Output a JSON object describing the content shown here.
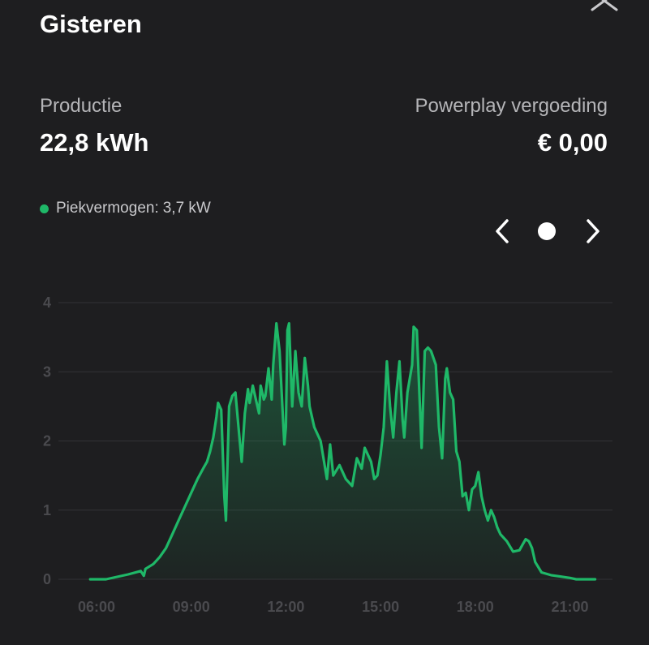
{
  "header": {
    "title": "Gisteren"
  },
  "stats": {
    "production_label": "Productie",
    "production_value": "22,8 kWh",
    "powerplay_label": "Powerplay vergoeding",
    "powerplay_value": "€ 0,00"
  },
  "legend": {
    "label": "Piekvermogen:",
    "value": "3,7 kW",
    "color": "#1fb868"
  },
  "colors": {
    "background": "#1e1e20",
    "line": "#1fb868",
    "grid": "#333336",
    "tick": "#4a4a4e"
  },
  "chart_data": {
    "type": "area",
    "x_unit": "hour",
    "y_unit": "kW",
    "ylim": [
      0,
      4
    ],
    "y_ticks": [
      0,
      1,
      2,
      3,
      4
    ],
    "x_ticks": [
      {
        "value": 6,
        "label": "06:00"
      },
      {
        "value": 9,
        "label": "09:00"
      },
      {
        "value": 12,
        "label": "12:00"
      },
      {
        "value": 15,
        "label": "15:00"
      },
      {
        "value": 18,
        "label": "18:00"
      },
      {
        "value": 21,
        "label": "21:00"
      }
    ],
    "grid": true,
    "series": [
      {
        "points": [
          [
            5.8,
            0
          ],
          [
            6.3,
            0
          ],
          [
            7.0,
            0.07
          ],
          [
            7.4,
            0.12
          ],
          [
            7.5,
            0.05
          ],
          [
            7.55,
            0.15
          ],
          [
            7.8,
            0.22
          ],
          [
            8.0,
            0.32
          ],
          [
            8.2,
            0.45
          ],
          [
            8.4,
            0.65
          ],
          [
            8.6,
            0.85
          ],
          [
            8.8,
            1.05
          ],
          [
            9.0,
            1.25
          ],
          [
            9.2,
            1.45
          ],
          [
            9.4,
            1.62
          ],
          [
            9.5,
            1.7
          ],
          [
            9.6,
            1.85
          ],
          [
            9.7,
            2.05
          ],
          [
            9.8,
            2.35
          ],
          [
            9.85,
            2.55
          ],
          [
            9.95,
            2.45
          ],
          [
            10.05,
            1.2
          ],
          [
            10.1,
            0.85
          ],
          [
            10.2,
            2.5
          ],
          [
            10.3,
            2.65
          ],
          [
            10.4,
            2.7
          ],
          [
            10.5,
            2.2
          ],
          [
            10.6,
            1.7
          ],
          [
            10.7,
            2.4
          ],
          [
            10.8,
            2.75
          ],
          [
            10.85,
            2.55
          ],
          [
            10.95,
            2.8
          ],
          [
            11.05,
            2.6
          ],
          [
            11.15,
            2.4
          ],
          [
            11.2,
            2.8
          ],
          [
            11.3,
            2.6
          ],
          [
            11.35,
            2.65
          ],
          [
            11.45,
            3.05
          ],
          [
            11.55,
            2.6
          ],
          [
            11.6,
            3.1
          ],
          [
            11.7,
            3.7
          ],
          [
            11.8,
            3.3
          ],
          [
            11.9,
            2.4
          ],
          [
            11.95,
            1.95
          ],
          [
            12.0,
            2.2
          ],
          [
            12.05,
            3.6
          ],
          [
            12.1,
            3.7
          ],
          [
            12.2,
            2.5
          ],
          [
            12.3,
            3.3
          ],
          [
            12.4,
            2.7
          ],
          [
            12.5,
            2.5
          ],
          [
            12.6,
            3.2
          ],
          [
            12.7,
            2.8
          ],
          [
            12.75,
            2.5
          ],
          [
            12.9,
            2.2
          ],
          [
            13.1,
            2.0
          ],
          [
            13.3,
            1.45
          ],
          [
            13.4,
            1.95
          ],
          [
            13.5,
            1.5
          ],
          [
            13.7,
            1.65
          ],
          [
            13.9,
            1.45
          ],
          [
            14.1,
            1.35
          ],
          [
            14.25,
            1.75
          ],
          [
            14.4,
            1.6
          ],
          [
            14.5,
            1.9
          ],
          [
            14.7,
            1.7
          ],
          [
            14.8,
            1.45
          ],
          [
            14.9,
            1.5
          ],
          [
            15.0,
            1.8
          ],
          [
            15.1,
            2.2
          ],
          [
            15.2,
            3.15
          ],
          [
            15.3,
            2.5
          ],
          [
            15.4,
            2.05
          ],
          [
            15.5,
            2.7
          ],
          [
            15.6,
            3.15
          ],
          [
            15.7,
            2.3
          ],
          [
            15.75,
            2.05
          ],
          [
            15.85,
            2.7
          ],
          [
            16.0,
            3.1
          ],
          [
            16.05,
            3.65
          ],
          [
            16.15,
            3.6
          ],
          [
            16.3,
            1.9
          ],
          [
            16.4,
            3.3
          ],
          [
            16.5,
            3.35
          ],
          [
            16.6,
            3.3
          ],
          [
            16.75,
            3.1
          ],
          [
            16.85,
            2.2
          ],
          [
            16.95,
            1.75
          ],
          [
            17.05,
            2.9
          ],
          [
            17.1,
            3.05
          ],
          [
            17.2,
            2.7
          ],
          [
            17.3,
            2.6
          ],
          [
            17.4,
            1.85
          ],
          [
            17.5,
            1.7
          ],
          [
            17.6,
            1.2
          ],
          [
            17.7,
            1.25
          ],
          [
            17.8,
            1.0
          ],
          [
            17.9,
            1.3
          ],
          [
            18.0,
            1.35
          ],
          [
            18.1,
            1.55
          ],
          [
            18.2,
            1.2
          ],
          [
            18.3,
            1.0
          ],
          [
            18.4,
            0.85
          ],
          [
            18.5,
            1.0
          ],
          [
            18.6,
            0.9
          ],
          [
            18.7,
            0.75
          ],
          [
            18.8,
            0.65
          ],
          [
            19.0,
            0.55
          ],
          [
            19.2,
            0.4
          ],
          [
            19.4,
            0.42
          ],
          [
            19.5,
            0.5
          ],
          [
            19.6,
            0.58
          ],
          [
            19.7,
            0.55
          ],
          [
            19.8,
            0.45
          ],
          [
            19.9,
            0.25
          ],
          [
            20.1,
            0.1
          ],
          [
            20.4,
            0.06
          ],
          [
            20.7,
            0.04
          ],
          [
            21.0,
            0.02
          ],
          [
            21.2,
            0
          ],
          [
            21.8,
            0
          ]
        ]
      }
    ]
  }
}
